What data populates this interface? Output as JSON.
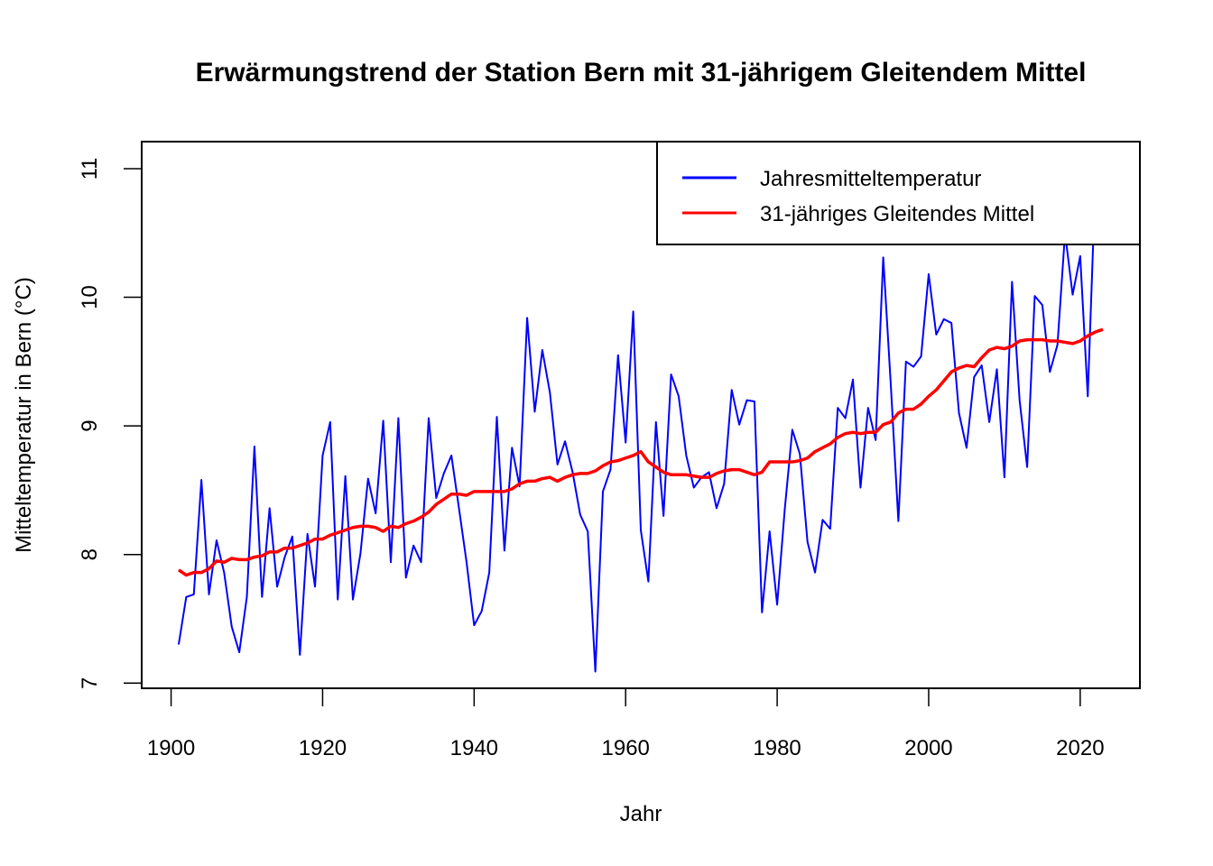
{
  "chart_data": {
    "type": "line",
    "title": "Erwärmungstrend der Station Bern mit 31-jährigem Gleitendem Mittel",
    "xlabel": "Jahr",
    "ylabel": "Mitteltemperatur in Bern (°C)",
    "xlim": [
      1896.12,
      2027.88
    ],
    "ylim": [
      6.96,
      11.21
    ],
    "xticks": [
      1900,
      1920,
      1940,
      1960,
      1980,
      2000,
      2020
    ],
    "xtick_labels": [
      "1900",
      "1920",
      "1940",
      "1960",
      "1980",
      "2000",
      "2020"
    ],
    "yticks": [
      7,
      8,
      9,
      10,
      11
    ],
    "ytick_labels": [
      "7",
      "8",
      "9",
      "10",
      "11"
    ],
    "grid": false,
    "legend_position": "top-right",
    "series": [
      {
        "name": "Jahresmitteltemperatur",
        "color": "#0000ff",
        "x_start": 1901,
        "values": [
          7.3,
          7.67,
          7.69,
          8.58,
          7.69,
          8.11,
          7.86,
          7.44,
          7.24,
          7.67,
          8.84,
          7.67,
          8.36,
          7.75,
          7.98,
          8.14,
          7.22,
          8.16,
          7.75,
          8.77,
          9.03,
          7.65,
          8.61,
          7.65,
          8.01,
          8.59,
          8.32,
          9.04,
          7.94,
          9.06,
          7.82,
          8.07,
          7.94,
          9.06,
          8.44,
          8.63,
          8.77,
          8.36,
          7.94,
          7.45,
          7.56,
          7.86,
          9.07,
          8.03,
          8.83,
          8.53,
          9.84,
          9.11,
          9.59,
          9.26,
          8.7,
          8.88,
          8.64,
          8.31,
          8.18,
          7.09,
          8.49,
          8.66,
          9.55,
          8.87,
          9.89,
          8.19,
          7.79,
          9.03,
          8.3,
          9.4,
          9.23,
          8.77,
          8.52,
          8.6,
          8.64,
          8.36,
          8.55,
          9.28,
          9.01,
          9.2,
          9.19,
          7.55,
          8.18,
          7.61,
          8.35,
          8.97,
          8.78,
          8.1,
          7.86,
          8.27,
          8.2,
          9.14,
          9.06,
          9.36,
          8.52,
          9.14,
          8.89,
          10.31,
          9.32,
          8.26,
          9.5,
          9.46,
          9.54,
          10.18,
          9.71,
          9.83,
          9.8,
          9.1,
          8.83,
          9.38,
          9.47,
          9.03,
          9.44,
          8.6,
          10.12,
          9.2,
          8.68,
          10.01,
          9.94,
          9.42,
          9.63,
          10.5,
          10.02,
          10.32,
          9.23,
          10.9
        ]
      },
      {
        "name": "31-jähriges Gleitendes Mittel",
        "color": "#ff0000",
        "x_start": 1901,
        "values": [
          7.88,
          7.84,
          7.86,
          7.86,
          7.89,
          7.95,
          7.94,
          7.97,
          7.96,
          7.96,
          7.98,
          7.99,
          8.02,
          8.02,
          8.05,
          8.05,
          8.07,
          8.09,
          8.12,
          8.12,
          8.15,
          8.17,
          8.19,
          8.21,
          8.22,
          8.22,
          8.21,
          8.18,
          8.22,
          8.21,
          8.24,
          8.26,
          8.29,
          8.33,
          8.39,
          8.43,
          8.47,
          8.47,
          8.46,
          8.49,
          8.49,
          8.49,
          8.49,
          8.49,
          8.51,
          8.55,
          8.57,
          8.57,
          8.59,
          8.6,
          8.57,
          8.6,
          8.62,
          8.63,
          8.63,
          8.65,
          8.69,
          8.72,
          8.73,
          8.75,
          8.77,
          8.8,
          8.72,
          8.68,
          8.64,
          8.62,
          8.62,
          8.62,
          8.61,
          8.6,
          8.6,
          8.63,
          8.65,
          8.66,
          8.66,
          8.64,
          8.62,
          8.64,
          8.72,
          8.72,
          8.72,
          8.72,
          8.73,
          8.75,
          8.8,
          8.83,
          8.86,
          8.91,
          8.94,
          8.95,
          8.94,
          8.95,
          8.95,
          9.01,
          9.03,
          9.1,
          9.13,
          9.13,
          9.17,
          9.23,
          9.28,
          9.35,
          9.42,
          9.45,
          9.47,
          9.46,
          9.53,
          9.59,
          9.61,
          9.6,
          9.62,
          9.66,
          9.67,
          9.67,
          9.67,
          9.66,
          9.66,
          9.65,
          9.64,
          9.66,
          9.7,
          9.73,
          9.75
        ]
      }
    ]
  }
}
